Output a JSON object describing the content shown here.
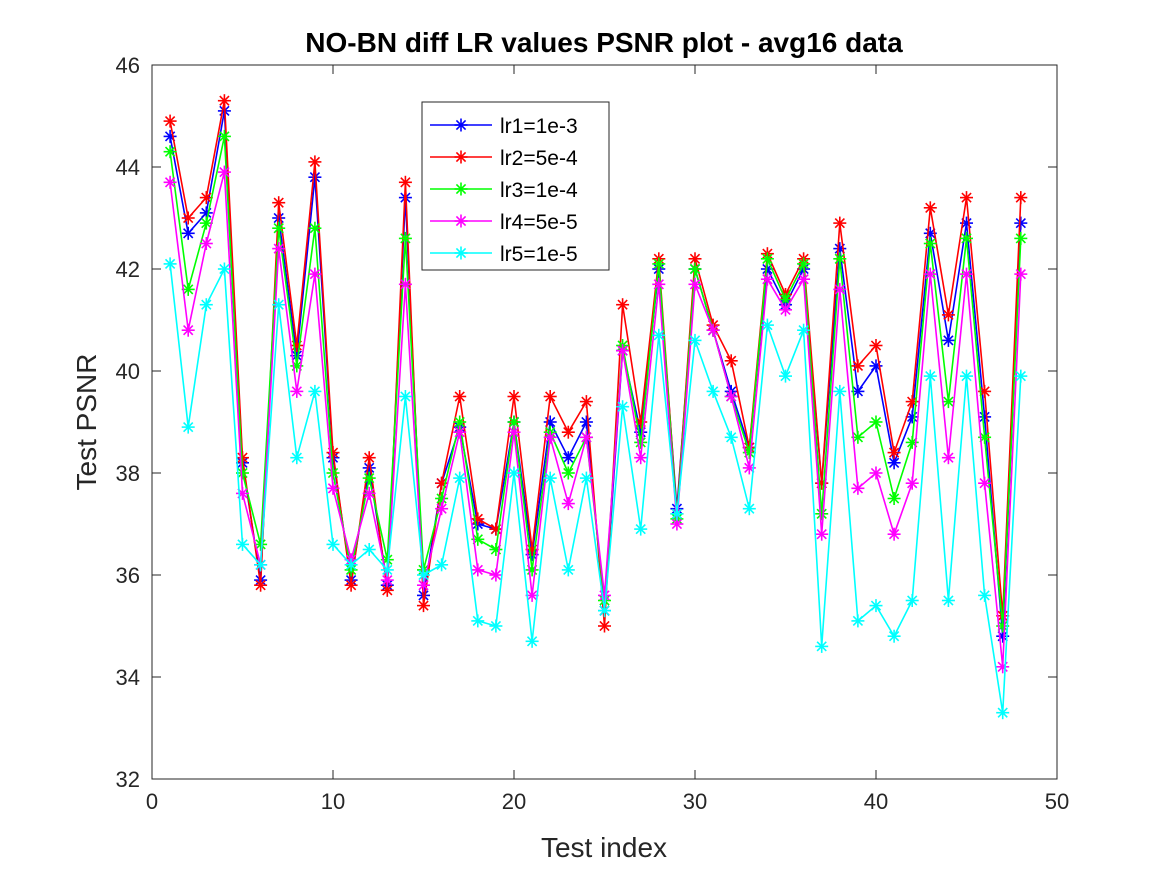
{
  "chart_data": {
    "type": "line",
    "title": "NO-BN diff LR values PSNR plot - avg16 data",
    "xlabel": "Test index",
    "ylabel": "Test PSNR",
    "xlim": [
      0,
      50
    ],
    "ylim": [
      32,
      46
    ],
    "xticks": [
      0,
      10,
      20,
      30,
      40,
      50
    ],
    "yticks": [
      32,
      34,
      36,
      38,
      40,
      42,
      44,
      46
    ],
    "xtick_labels": [
      "0",
      "10",
      "20",
      "30",
      "40",
      "50"
    ],
    "ytick_labels": [
      "32",
      "34",
      "36",
      "38",
      "40",
      "42",
      "44",
      "46"
    ],
    "grid": false,
    "legend_position": "upper-center",
    "marker": "asterisk",
    "x": [
      1,
      2,
      3,
      4,
      5,
      6,
      7,
      8,
      9,
      10,
      11,
      12,
      13,
      14,
      15,
      16,
      17,
      18,
      19,
      20,
      21,
      22,
      23,
      24,
      25,
      26,
      27,
      28,
      29,
      30,
      31,
      32,
      33,
      34,
      35,
      36,
      37,
      38,
      39,
      40,
      41,
      42,
      43,
      44,
      45,
      46,
      47,
      48
    ],
    "series": [
      {
        "name": "lr1=1e-3",
        "color": "#0000ff",
        "values": [
          44.6,
          42.7,
          43.1,
          45.1,
          38.2,
          35.9,
          43.0,
          40.3,
          43.8,
          38.3,
          35.9,
          38.1,
          35.8,
          43.4,
          35.6,
          37.8,
          38.9,
          37.0,
          36.9,
          39.0,
          36.4,
          39.0,
          38.3,
          39.0,
          35.3,
          40.4,
          38.8,
          42.0,
          37.3,
          42.0,
          40.8,
          39.6,
          38.5,
          42.0,
          41.3,
          42.0,
          37.8,
          42.4,
          39.6,
          40.1,
          38.2,
          39.1,
          42.7,
          40.6,
          42.9,
          39.1,
          34.8,
          42.9
        ]
      },
      {
        "name": "lr2=5e-4",
        "color": "#ff0000",
        "values": [
          44.9,
          43.0,
          43.4,
          45.3,
          38.3,
          35.8,
          43.3,
          40.5,
          44.1,
          38.4,
          35.8,
          38.3,
          35.7,
          43.7,
          35.4,
          37.8,
          39.5,
          37.1,
          36.9,
          39.5,
          36.5,
          39.5,
          38.8,
          39.4,
          35.0,
          41.3,
          39.0,
          42.2,
          37.2,
          42.2,
          40.9,
          40.2,
          38.5,
          42.3,
          41.5,
          42.2,
          37.8,
          42.9,
          40.1,
          40.5,
          38.4,
          39.4,
          43.2,
          41.1,
          43.4,
          39.6,
          35.2,
          43.4
        ]
      },
      {
        "name": "lr3=1e-4",
        "color": "#00ff00",
        "values": [
          44.3,
          41.6,
          42.9,
          44.6,
          38.0,
          36.6,
          42.8,
          40.1,
          42.8,
          38.0,
          36.1,
          37.9,
          36.3,
          42.6,
          36.1,
          37.5,
          39.0,
          36.7,
          36.5,
          39.0,
          36.1,
          38.8,
          38.0,
          38.7,
          35.5,
          40.5,
          38.6,
          42.1,
          37.1,
          42.0,
          40.8,
          39.5,
          38.4,
          42.2,
          41.4,
          42.1,
          37.2,
          42.2,
          38.7,
          39.0,
          37.5,
          38.6,
          42.5,
          39.4,
          42.6,
          38.7,
          35.0,
          42.6
        ]
      },
      {
        "name": "lr4=5e-5",
        "color": "#ff00ff",
        "values": [
          43.7,
          40.8,
          42.5,
          43.9,
          37.6,
          36.2,
          42.4,
          39.6,
          41.9,
          37.7,
          36.3,
          37.6,
          35.9,
          41.7,
          35.8,
          37.3,
          38.8,
          36.1,
          36.0,
          38.8,
          35.6,
          38.7,
          37.4,
          38.7,
          35.6,
          40.4,
          38.3,
          41.7,
          37.0,
          41.7,
          40.8,
          39.5,
          38.1,
          41.8,
          41.2,
          41.8,
          36.8,
          41.6,
          37.7,
          38.0,
          36.8,
          37.8,
          41.9,
          38.3,
          41.9,
          37.8,
          34.2,
          41.9
        ]
      },
      {
        "name": "lr5=1e-5",
        "color": "#00ffff",
        "values": [
          42.1,
          38.9,
          41.3,
          42.0,
          36.6,
          36.2,
          41.3,
          38.3,
          39.6,
          36.6,
          36.2,
          36.5,
          36.1,
          39.5,
          36.0,
          36.2,
          37.9,
          35.1,
          35.0,
          38.0,
          34.7,
          37.9,
          36.1,
          37.9,
          35.3,
          39.3,
          36.9,
          40.7,
          37.2,
          40.6,
          39.6,
          38.7,
          37.3,
          40.9,
          39.9,
          40.8,
          34.6,
          39.6,
          35.1,
          35.4,
          34.8,
          35.5,
          39.9,
          35.5,
          39.9,
          35.6,
          33.3,
          39.9
        ]
      }
    ]
  }
}
